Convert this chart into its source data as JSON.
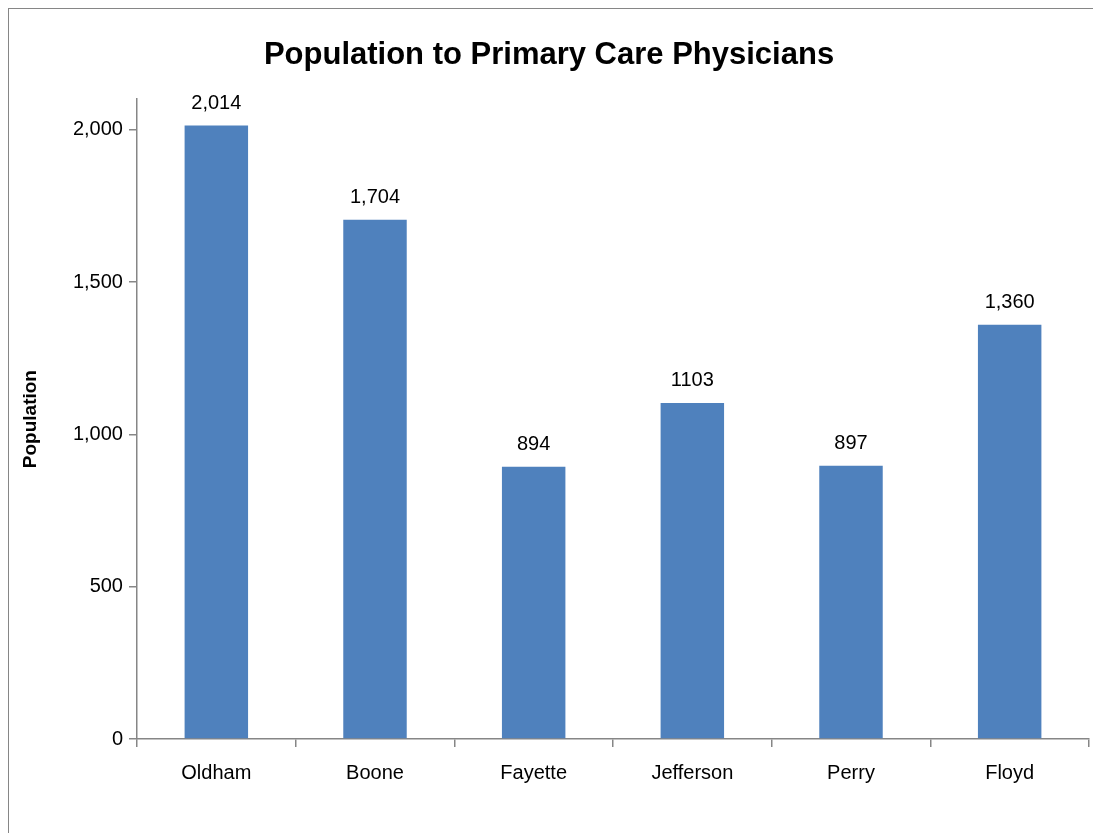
{
  "chart_data": {
    "type": "bar",
    "title": "Population to Primary Care Physicians",
    "ylabel": "Population",
    "categories": [
      "Oldham",
      "Boone",
      "Fayette",
      "Jefferson",
      "Perry",
      "Floyd"
    ],
    "values": [
      2014,
      1704,
      894,
      1103,
      897,
      1360
    ],
    "value_labels": [
      "2,014",
      "1,704",
      "894",
      "1103",
      "897",
      "1,360"
    ],
    "color": "#4f81bd",
    "ylim": [
      0,
      2100
    ],
    "yticks": [
      0,
      500,
      {
        "value": 1000,
        "label": "1,000"
      },
      {
        "value": 1500,
        "label": "1,500"
      },
      {
        "value": 2000,
        "label": "2,000"
      }
    ]
  }
}
